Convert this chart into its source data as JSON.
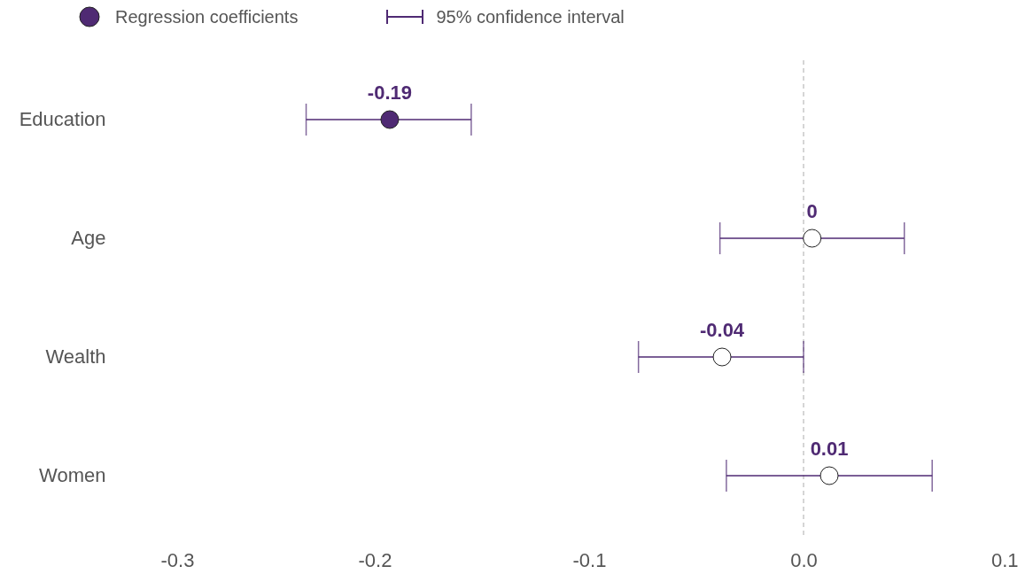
{
  "chart_data": {
    "type": "scatter",
    "orientation": "horizontal",
    "categories": [
      "Education",
      "Age",
      "Wealth",
      "Women"
    ],
    "series": [
      {
        "name": "Regression coefficients",
        "color": "#4f2a73",
        "colors": [
          "#4f2a73",
          "#ffffff",
          "#ffffff",
          "#ffffff"
        ],
        "values": [
          -0.193,
          0.004,
          -0.038,
          0.012
        ],
        "errors": [
          [
            -0.232,
            -0.155
          ],
          [
            -0.039,
            0.047
          ],
          [
            -0.077,
            0.0
          ],
          [
            -0.036,
            0.06
          ]
        ],
        "value_labels": [
          "-0.19",
          "0",
          "-0.04",
          "0.01"
        ]
      }
    ],
    "xlim": [
      -0.3,
      0.1
    ],
    "xticks": [
      -0.3,
      -0.2,
      -0.1,
      {
        "value": 0,
        "label": "0.0"
      },
      0.1
    ],
    "ref_lines": [
      {
        "axis": "x",
        "value": 0,
        "color": "#c8c8c8",
        "line_style": "dashed"
      }
    ],
    "annotations": [
      "95% confidence interval"
    ],
    "legend": "top left",
    "grid": false,
    "marker": "circle"
  }
}
